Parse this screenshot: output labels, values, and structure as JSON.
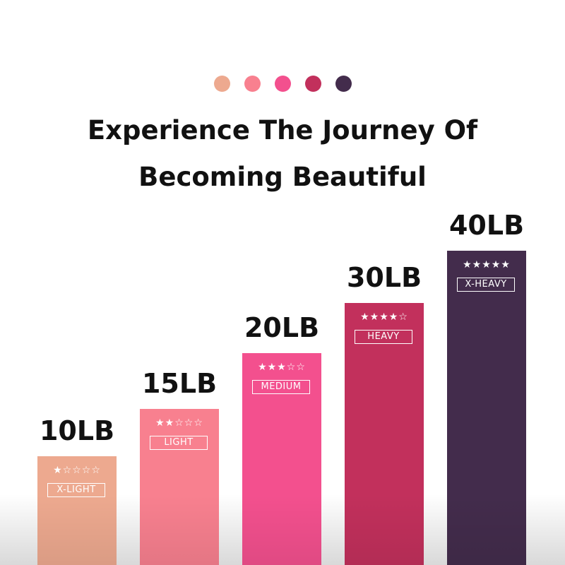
{
  "header": {
    "dot_colors": [
      "#EDA98F",
      "#F8808F",
      "#F3508E",
      "#C2305C",
      "#432C4C"
    ],
    "title_line1": "Experience The Journey Of",
    "title_line2": "Becoming Beautiful"
  },
  "chart_data": {
    "type": "bar",
    "categories": [
      "X-LIGHT",
      "LIGHT",
      "MEDIUM",
      "HEAVY",
      "X-HEAVY"
    ],
    "value_labels": [
      "10LB",
      "15LB",
      "20LB",
      "30LB",
      "40LB"
    ],
    "stars": [
      1,
      2,
      3,
      4,
      5
    ],
    "colors": [
      "#EDA98F",
      "#F8808F",
      "#F3508E",
      "#C2305C",
      "#432C4C"
    ],
    "grid": false
  }
}
